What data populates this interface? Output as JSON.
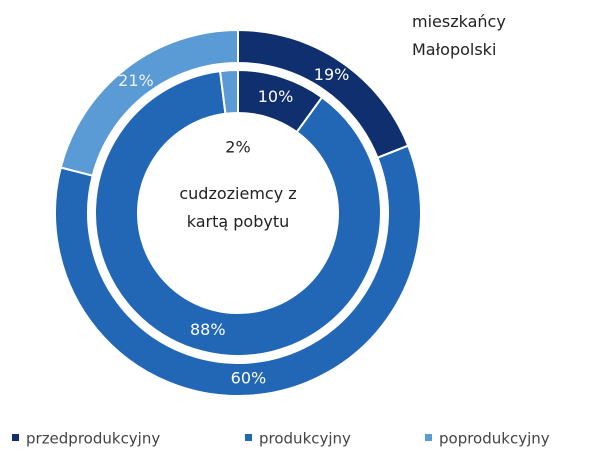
{
  "chart_data": {
    "type": "donut",
    "categories": [
      "przedprodukcyjny",
      "produkcyjny",
      "poprodukcyjny"
    ],
    "colors": [
      "#0f2f6e",
      "#2167b6",
      "#5b9bd5"
    ],
    "rings": [
      {
        "name": "mieszkańcy Małopolski",
        "values": [
          19,
          60,
          21
        ],
        "value_labels": [
          "19%",
          "60%",
          "21%"
        ]
      },
      {
        "name": "cudzoziemcy z kartą pobytu",
        "values": [
          10,
          88,
          2
        ],
        "value_labels": [
          "10%",
          "88%",
          "2%"
        ]
      }
    ],
    "legend": "bottom"
  }
}
